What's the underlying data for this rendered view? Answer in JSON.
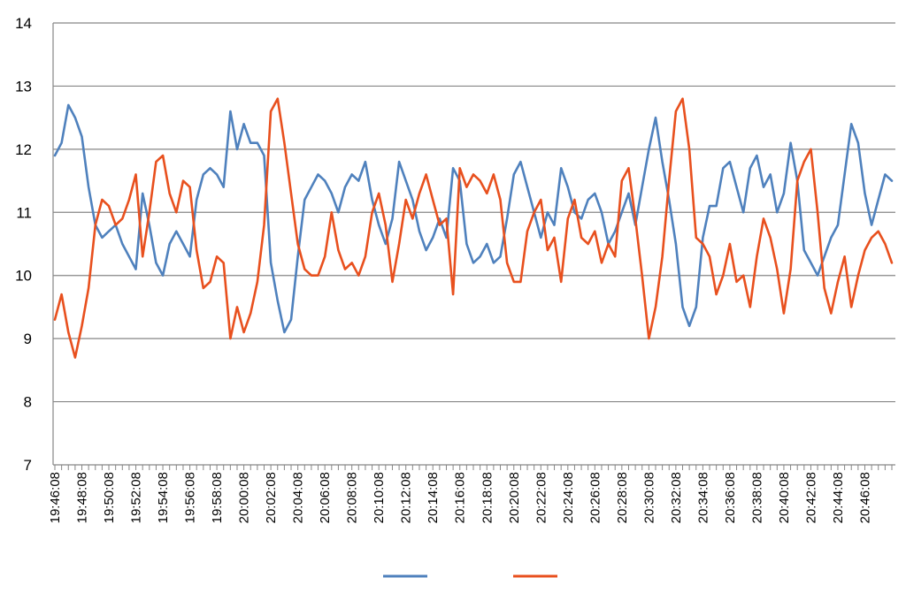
{
  "chart_data": {
    "type": "line",
    "title": "",
    "xlabel": "",
    "ylabel": "",
    "ylim": [
      7,
      14
    ],
    "yticks": [
      7,
      8,
      9,
      10,
      11,
      12,
      13,
      14
    ],
    "grid": {
      "horizontal": true,
      "vertical": false
    },
    "x_tick_labels": [
      "19:46:08",
      "19:48:08",
      "19:50:08",
      "19:52:08",
      "19:54:08",
      "19:56:08",
      "19:58:08",
      "20:00:08",
      "20:02:08",
      "20:04:08",
      "20:06:08",
      "20:08:08",
      "20:10:08",
      "20:12:08",
      "20:14:08",
      "20:16:08",
      "20:18:08",
      "20:20:08",
      "20:22:08",
      "20:24:08",
      "20:26:08",
      "20:28:08",
      "20:30:08",
      "20:32:08",
      "20:34:08",
      "20:36:08",
      "20:38:08",
      "20:40:08",
      "20:42:08",
      "20:44:08",
      "20:46:08"
    ],
    "x_minutes_range": [
      0,
      62
    ],
    "legend_position": "bottom",
    "series": [
      {
        "color": "#4f81bd",
        "points": [
          [
            0,
            11.9
          ],
          [
            0.5,
            12.1
          ],
          [
            1,
            12.7
          ],
          [
            1.5,
            12.5
          ],
          [
            2,
            12.2
          ],
          [
            2.5,
            11.4
          ],
          [
            3,
            10.8
          ],
          [
            3.5,
            10.6
          ],
          [
            4,
            10.7
          ],
          [
            4.5,
            10.8
          ],
          [
            5,
            10.5
          ],
          [
            5.5,
            10.3
          ],
          [
            6,
            10.1
          ],
          [
            6.5,
            11.3
          ],
          [
            7,
            10.8
          ],
          [
            7.5,
            10.2
          ],
          [
            8,
            10.0
          ],
          [
            8.5,
            10.5
          ],
          [
            9,
            10.7
          ],
          [
            9.5,
            10.5
          ],
          [
            10,
            10.3
          ],
          [
            10.5,
            11.2
          ],
          [
            11,
            11.6
          ],
          [
            11.5,
            11.7
          ],
          [
            12,
            11.6
          ],
          [
            12.5,
            11.4
          ],
          [
            13,
            12.6
          ],
          [
            13.5,
            12.0
          ],
          [
            14,
            12.4
          ],
          [
            14.5,
            12.1
          ],
          [
            15,
            12.1
          ],
          [
            15.5,
            11.9
          ],
          [
            16,
            10.2
          ],
          [
            16.5,
            9.6
          ],
          [
            17,
            9.1
          ],
          [
            17.5,
            9.3
          ],
          [
            18,
            10.3
          ],
          [
            18.5,
            11.2
          ],
          [
            19,
            11.4
          ],
          [
            19.5,
            11.6
          ],
          [
            20,
            11.5
          ],
          [
            20.5,
            11.3
          ],
          [
            21,
            11.0
          ],
          [
            21.5,
            11.4
          ],
          [
            22,
            11.6
          ],
          [
            22.5,
            11.5
          ],
          [
            23,
            11.8
          ],
          [
            23.5,
            11.2
          ],
          [
            24,
            10.8
          ],
          [
            24.5,
            10.5
          ],
          [
            25,
            10.9
          ],
          [
            25.5,
            11.8
          ],
          [
            26,
            11.5
          ],
          [
            26.5,
            11.2
          ],
          [
            27,
            10.7
          ],
          [
            27.5,
            10.4
          ],
          [
            28,
            10.6
          ],
          [
            28.5,
            10.9
          ],
          [
            29,
            10.6
          ],
          [
            29.5,
            11.7
          ],
          [
            30,
            11.5
          ],
          [
            30.5,
            10.5
          ],
          [
            31,
            10.2
          ],
          [
            31.5,
            10.3
          ],
          [
            32,
            10.5
          ],
          [
            32.5,
            10.2
          ],
          [
            33,
            10.3
          ],
          [
            33.5,
            10.9
          ],
          [
            34,
            11.6
          ],
          [
            34.5,
            11.8
          ],
          [
            35,
            11.4
          ],
          [
            35.5,
            11.0
          ],
          [
            36,
            10.6
          ],
          [
            36.5,
            11.0
          ],
          [
            37,
            10.8
          ],
          [
            37.5,
            11.7
          ],
          [
            38,
            11.4
          ],
          [
            38.5,
            11.0
          ],
          [
            39,
            10.9
          ],
          [
            39.5,
            11.2
          ],
          [
            40,
            11.3
          ],
          [
            40.5,
            11.0
          ],
          [
            41,
            10.5
          ],
          [
            41.5,
            10.7
          ],
          [
            42,
            11.0
          ],
          [
            42.5,
            11.3
          ],
          [
            43,
            10.8
          ],
          [
            43.5,
            11.4
          ],
          [
            44,
            12.0
          ],
          [
            44.5,
            12.5
          ],
          [
            45,
            11.8
          ],
          [
            45.5,
            11.2
          ],
          [
            46,
            10.5
          ],
          [
            46.5,
            9.5
          ],
          [
            47,
            9.2
          ],
          [
            47.5,
            9.5
          ],
          [
            48,
            10.6
          ],
          [
            48.5,
            11.1
          ],
          [
            49,
            11.1
          ],
          [
            49.5,
            11.7
          ],
          [
            50,
            11.8
          ],
          [
            50.5,
            11.4
          ],
          [
            51,
            11.0
          ],
          [
            51.5,
            11.7
          ],
          [
            52,
            11.9
          ],
          [
            52.5,
            11.4
          ],
          [
            53,
            11.6
          ],
          [
            53.5,
            11.0
          ],
          [
            54,
            11.3
          ],
          [
            54.5,
            12.1
          ],
          [
            55,
            11.5
          ],
          [
            55.5,
            10.4
          ],
          [
            56,
            10.2
          ],
          [
            56.5,
            10.0
          ],
          [
            57,
            10.3
          ],
          [
            57.5,
            10.6
          ],
          [
            58,
            10.8
          ],
          [
            58.5,
            11.6
          ],
          [
            59,
            12.4
          ],
          [
            59.5,
            12.1
          ],
          [
            60,
            11.3
          ],
          [
            60.5,
            10.8
          ],
          [
            61,
            11.2
          ],
          [
            61.5,
            11.6
          ],
          [
            62,
            11.5
          ]
        ]
      },
      {
        "color": "#e8501e",
        "points": [
          [
            0,
            9.3
          ],
          [
            0.5,
            9.7
          ],
          [
            1,
            9.1
          ],
          [
            1.5,
            8.7
          ],
          [
            2,
            9.2
          ],
          [
            2.5,
            9.8
          ],
          [
            3,
            10.8
          ],
          [
            3.5,
            11.2
          ],
          [
            4,
            11.1
          ],
          [
            4.5,
            10.8
          ],
          [
            5,
            10.9
          ],
          [
            5.5,
            11.2
          ],
          [
            6,
            11.6
          ],
          [
            6.5,
            10.3
          ],
          [
            7,
            11.0
          ],
          [
            7.5,
            11.8
          ],
          [
            8,
            11.9
          ],
          [
            8.5,
            11.3
          ],
          [
            9,
            11.0
          ],
          [
            9.5,
            11.5
          ],
          [
            10,
            11.4
          ],
          [
            10.5,
            10.4
          ],
          [
            11,
            9.8
          ],
          [
            11.5,
            9.9
          ],
          [
            12,
            10.3
          ],
          [
            12.5,
            10.2
          ],
          [
            13,
            9.0
          ],
          [
            13.5,
            9.5
          ],
          [
            14,
            9.1
          ],
          [
            14.5,
            9.4
          ],
          [
            15,
            9.9
          ],
          [
            15.5,
            10.8
          ],
          [
            16,
            12.6
          ],
          [
            16.5,
            12.8
          ],
          [
            17,
            12.1
          ],
          [
            17.5,
            11.3
          ],
          [
            18,
            10.5
          ],
          [
            18.5,
            10.1
          ],
          [
            19,
            10.0
          ],
          [
            19.5,
            10.0
          ],
          [
            20,
            10.3
          ],
          [
            20.5,
            11.0
          ],
          [
            21,
            10.4
          ],
          [
            21.5,
            10.1
          ],
          [
            22,
            10.2
          ],
          [
            22.5,
            10.0
          ],
          [
            23,
            10.3
          ],
          [
            23.5,
            11.0
          ],
          [
            24,
            11.3
          ],
          [
            24.5,
            10.8
          ],
          [
            25,
            9.9
          ],
          [
            25.5,
            10.5
          ],
          [
            26,
            11.2
          ],
          [
            26.5,
            10.9
          ],
          [
            27,
            11.3
          ],
          [
            27.5,
            11.6
          ],
          [
            28,
            11.2
          ],
          [
            28.5,
            10.8
          ],
          [
            29,
            10.9
          ],
          [
            29.5,
            9.7
          ],
          [
            30,
            11.7
          ],
          [
            30.5,
            11.4
          ],
          [
            31,
            11.6
          ],
          [
            31.5,
            11.5
          ],
          [
            32,
            11.3
          ],
          [
            32.5,
            11.6
          ],
          [
            33,
            11.2
          ],
          [
            33.5,
            10.2
          ],
          [
            34,
            9.9
          ],
          [
            34.5,
            9.9
          ],
          [
            35,
            10.7
          ],
          [
            35.5,
            11.0
          ],
          [
            36,
            11.2
          ],
          [
            36.5,
            10.4
          ],
          [
            37,
            10.6
          ],
          [
            37.5,
            9.9
          ],
          [
            38,
            10.9
          ],
          [
            38.5,
            11.2
          ],
          [
            39,
            10.6
          ],
          [
            39.5,
            10.5
          ],
          [
            40,
            10.7
          ],
          [
            40.5,
            10.2
          ],
          [
            41,
            10.5
          ],
          [
            41.5,
            10.3
          ],
          [
            42,
            11.5
          ],
          [
            42.5,
            11.7
          ],
          [
            43,
            10.9
          ],
          [
            43.5,
            10.0
          ],
          [
            44,
            9.0
          ],
          [
            44.5,
            9.5
          ],
          [
            45,
            10.3
          ],
          [
            45.5,
            11.5
          ],
          [
            46,
            12.6
          ],
          [
            46.5,
            12.8
          ],
          [
            47,
            12.0
          ],
          [
            47.5,
            10.6
          ],
          [
            48,
            10.5
          ],
          [
            48.5,
            10.3
          ],
          [
            49,
            9.7
          ],
          [
            49.5,
            10.0
          ],
          [
            50,
            10.5
          ],
          [
            50.5,
            9.9
          ],
          [
            51,
            10.0
          ],
          [
            51.5,
            9.5
          ],
          [
            52,
            10.3
          ],
          [
            52.5,
            10.9
          ],
          [
            53,
            10.6
          ],
          [
            53.5,
            10.1
          ],
          [
            54,
            9.4
          ],
          [
            54.5,
            10.1
          ],
          [
            55,
            11.5
          ],
          [
            55.5,
            11.8
          ],
          [
            56,
            12.0
          ],
          [
            56.5,
            11.0
          ],
          [
            57,
            9.8
          ],
          [
            57.5,
            9.4
          ],
          [
            58,
            9.9
          ],
          [
            58.5,
            10.3
          ],
          [
            59,
            9.5
          ],
          [
            59.5,
            10.0
          ],
          [
            60,
            10.4
          ],
          [
            60.5,
            10.6
          ],
          [
            61,
            10.7
          ],
          [
            61.5,
            10.5
          ],
          [
            62,
            10.2
          ]
        ]
      }
    ]
  }
}
